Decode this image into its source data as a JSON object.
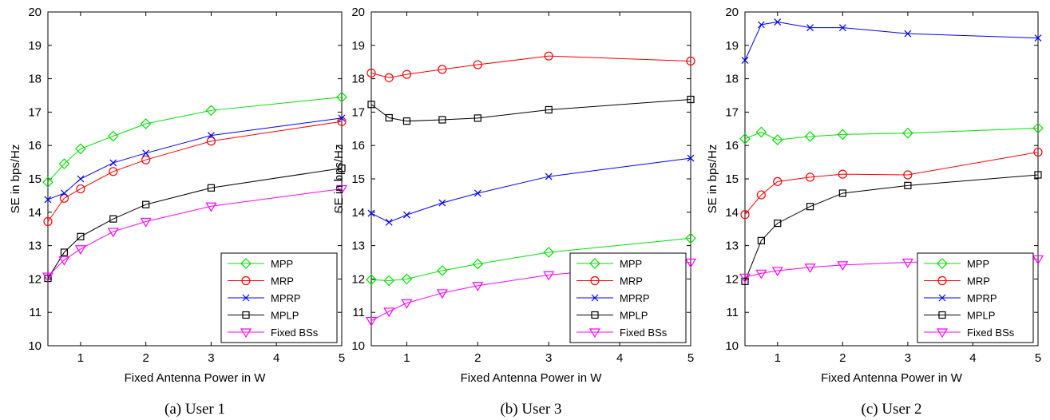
{
  "chart_data": [
    {
      "type": "line",
      "caption": "(a) User 1",
      "xlabel": "Fixed Antenna Power in W",
      "ylabel": "SE in bps/Hz",
      "xlim": [
        0.5,
        5
      ],
      "ylim": [
        10,
        20
      ],
      "xticks": [
        1,
        2,
        3,
        4,
        5
      ],
      "yticks": [
        10,
        11,
        12,
        13,
        14,
        15,
        16,
        17,
        18,
        19,
        20
      ],
      "grid": false,
      "legend_position": "bottom-right",
      "x": [
        0.5,
        0.75,
        1,
        1.5,
        2,
        3,
        5
      ],
      "series": [
        {
          "name": "MPP",
          "color": "#00e000",
          "marker": "diamond",
          "values": [
            14.9,
            15.45,
            15.9,
            16.28,
            16.65,
            17.05,
            17.45
          ]
        },
        {
          "name": "MRP",
          "color": "#ff0000",
          "marker": "circle",
          "values": [
            13.72,
            14.42,
            14.7,
            15.22,
            15.57,
            16.13,
            16.72
          ]
        },
        {
          "name": "MPRP",
          "color": "#0000ff",
          "marker": "x",
          "values": [
            14.38,
            14.57,
            15.0,
            15.48,
            15.77,
            16.3,
            16.82
          ]
        },
        {
          "name": "MPLP",
          "color": "#000000",
          "marker": "square",
          "values": [
            12.02,
            12.8,
            13.27,
            13.8,
            14.23,
            14.73,
            15.32
          ]
        },
        {
          "name": "Fixed BSs",
          "color": "#ff00ff",
          "marker": "triangle-down",
          "values": [
            12.08,
            12.57,
            12.9,
            13.42,
            13.72,
            14.18,
            14.7
          ]
        }
      ]
    },
    {
      "type": "line",
      "caption": "(b) User 3",
      "xlabel": "Fixed Antenna Power in W",
      "ylabel": "SE in bps/Hz",
      "xlim": [
        0.5,
        5
      ],
      "ylim": [
        10,
        20
      ],
      "xticks": [
        1,
        2,
        3,
        4,
        5
      ],
      "yticks": [
        10,
        11,
        12,
        13,
        14,
        15,
        16,
        17,
        18,
        19,
        20
      ],
      "grid": false,
      "legend_position": "bottom-right",
      "x": [
        0.5,
        0.75,
        1,
        1.5,
        2,
        3,
        5
      ],
      "series": [
        {
          "name": "MPP",
          "color": "#00e000",
          "marker": "diamond",
          "values": [
            11.98,
            11.95,
            12.0,
            12.25,
            12.45,
            12.8,
            13.22
          ]
        },
        {
          "name": "MRP",
          "color": "#ff0000",
          "marker": "circle",
          "values": [
            18.17,
            18.03,
            18.13,
            18.28,
            18.42,
            18.68,
            18.53
          ]
        },
        {
          "name": "MPRP",
          "color": "#0000ff",
          "marker": "x",
          "values": [
            13.97,
            13.7,
            13.92,
            14.28,
            14.57,
            15.07,
            15.62
          ]
        },
        {
          "name": "MPLP",
          "color": "#000000",
          "marker": "square",
          "values": [
            17.23,
            16.83,
            16.73,
            16.77,
            16.82,
            17.07,
            17.38
          ]
        },
        {
          "name": "Fixed BSs",
          "color": "#ff00ff",
          "marker": "triangle-down",
          "values": [
            10.75,
            11.03,
            11.28,
            11.58,
            11.8,
            12.12,
            12.5
          ]
        }
      ]
    },
    {
      "type": "line",
      "caption": "(c) User 2",
      "xlabel": "Fixed Antenna Power in W",
      "ylabel": "SE in bps/Hz",
      "xlim": [
        0.5,
        5
      ],
      "ylim": [
        10,
        20
      ],
      "xticks": [
        1,
        2,
        3,
        4,
        5
      ],
      "yticks": [
        10,
        11,
        12,
        13,
        14,
        15,
        16,
        17,
        18,
        19,
        20
      ],
      "grid": false,
      "legend_position": "bottom-right",
      "x": [
        0.5,
        0.75,
        1,
        1.5,
        2,
        3,
        5
      ],
      "series": [
        {
          "name": "MPP",
          "color": "#00e000",
          "marker": "diamond",
          "values": [
            16.2,
            16.4,
            16.17,
            16.27,
            16.33,
            16.37,
            16.52
          ]
        },
        {
          "name": "MRP",
          "color": "#ff0000",
          "marker": "circle",
          "values": [
            13.93,
            14.52,
            14.92,
            15.05,
            15.14,
            15.12,
            15.8
          ]
        },
        {
          "name": "MPRP",
          "color": "#0000ff",
          "marker": "x",
          "values": [
            18.55,
            19.62,
            19.7,
            19.53,
            19.53,
            19.35,
            19.22
          ]
        },
        {
          "name": "MPLP",
          "color": "#000000",
          "marker": "square",
          "values": [
            11.93,
            13.15,
            13.67,
            14.17,
            14.57,
            14.8,
            15.12
          ]
        },
        {
          "name": "Fixed BSs",
          "color": "#ff00ff",
          "marker": "triangle-down",
          "values": [
            12.05,
            12.17,
            12.25,
            12.35,
            12.42,
            12.5,
            12.6
          ]
        }
      ]
    }
  ]
}
